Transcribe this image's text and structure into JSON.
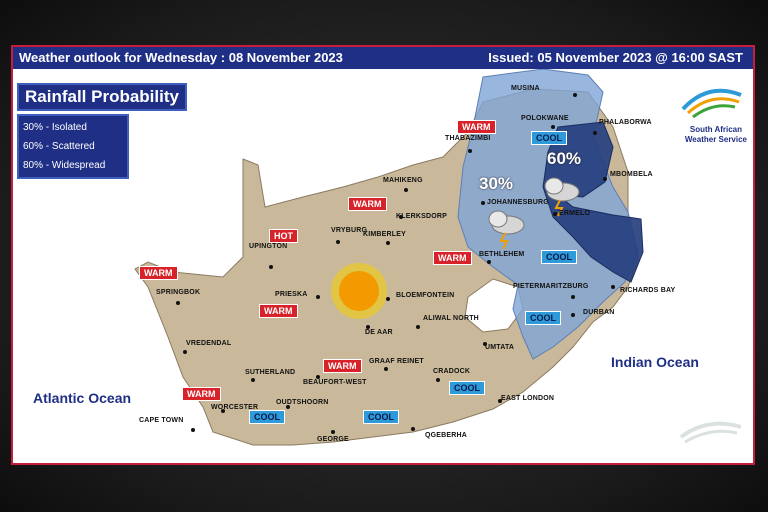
{
  "header": {
    "left": "Weather outlook for Wednesday : 08 November 2023",
    "right": "Issued: 05 November 2023 @ 16:00  SAST"
  },
  "legend": {
    "title": "Rainfall Probability",
    "items": [
      "30% - Isolated",
      "60% - Scattered",
      "80% - Widespread"
    ]
  },
  "logo": {
    "line1": "South African",
    "line2": "Weather Service"
  },
  "oceans": {
    "atlantic": "Atlantic Ocean",
    "indian": "Indian Ocean"
  },
  "rain_zones": {
    "zone30": "30%",
    "zone60": "60%"
  },
  "colors": {
    "header": "#1f2f86",
    "warm": "#d8222a",
    "cool": "#2e9ad9",
    "land": "#c9b99a",
    "rain30": "#7fa5d6",
    "rain60": "#263f7f"
  },
  "cities": {
    "musina": "MUSINA",
    "polokwane": "POLOKWANE",
    "phalaborwa": "PHALABORWA",
    "thabazimbi": "THABAZIMBI",
    "mbombela": "MBOMBELA",
    "mahikeng": "MAHIKENG",
    "klerksdorp": "KLERKSDORP",
    "johannesburg": "JOHANNESBURG",
    "ermelo": "ERMELO",
    "vryburg": "VRYBURG",
    "upington": "UPINGTON",
    "kimberley": "KIMBERLEY",
    "bethlehem": "BETHLEHEM",
    "springbok": "SPRINGBOK",
    "prieska": "PRIESKA",
    "bloemfontein": "BLOEMFONTEIN",
    "pietermaritzburg": "PIETERMARITZBURG",
    "richards_bay": "RICHARDS BAY",
    "durban": "DURBAN",
    "de_aar": "DE AAR",
    "aliwal_north": "ALIWAL NORTH",
    "vredendal": "VREDENDAL",
    "umtata": "UMTATA",
    "sutherland": "SUTHERLAND",
    "graaf_reinet": "GRAAF REINET",
    "cradock": "CRADOCK",
    "beaufort_west": "BEAUFORT-WEST",
    "worcester": "WORCESTER",
    "oudtshoorn": "OUDTSHOORN",
    "east_london": "EAST LONDON",
    "cape_town": "CAPE TOWN",
    "george": "GEORGE",
    "qgeberha": "QGEBERHA"
  },
  "badges": {
    "warm_thabazimbi": "WARM",
    "cool_polokwane": "COOL",
    "warm_vryburg": "WARM",
    "hot_upington": "HOT",
    "warm_bloem": "WARM",
    "warm_springbok": "WARM",
    "cool_bethlehem": "COOL",
    "warm_prieska": "WARM",
    "cool_durban": "COOL",
    "warm_beaufort": "WARM",
    "cool_cradock": "COOL",
    "warm_capetown": "WARM",
    "cool_worcester": "COOL",
    "cool_george": "COOL"
  }
}
